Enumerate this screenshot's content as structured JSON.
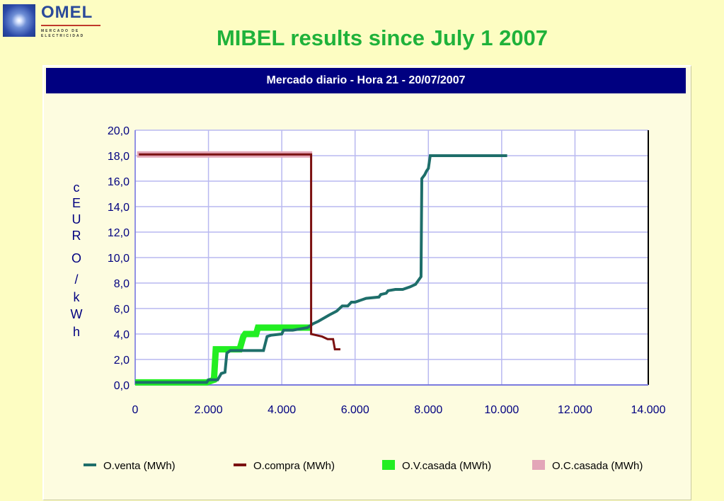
{
  "logo": {
    "word": "OMEL",
    "sub1": "MERCADO DE",
    "sub2": "ELECTRICIDAD"
  },
  "page_title": "MIBEL results since July 1 2007",
  "chart_data": {
    "type": "line",
    "title": "Mercado diario - Hora 21 - 20/07/2007",
    "xlabel": "",
    "ylabel": "cEURO/kWh",
    "ylabel_chars": [
      "c",
      "E",
      "U",
      "R",
      "O",
      "/",
      "k",
      "W",
      "h"
    ],
    "xlim": [
      0,
      14000
    ],
    "ylim": [
      0,
      20
    ],
    "x_ticks": [
      0,
      2000,
      4000,
      6000,
      8000,
      10000,
      12000,
      14000
    ],
    "x_tick_labels": [
      "0",
      "2.000",
      "4.000",
      "6.000",
      "8.000",
      "10.000",
      "12.000",
      "14.000"
    ],
    "y_ticks": [
      0,
      2,
      4,
      6,
      8,
      10,
      12,
      14,
      16,
      18,
      20
    ],
    "y_tick_labels": [
      "0,0",
      "2,0",
      "4,0",
      "6,0",
      "8,0",
      "10,0",
      "12,0",
      "14,0",
      "16,0",
      "18,0",
      "20,0"
    ],
    "grid": true,
    "legend_position": "bottom",
    "series": [
      {
        "name": "O.venta (MWh)",
        "color": "#1e6e6a",
        "points": [
          [
            0,
            0.2
          ],
          [
            1950,
            0.2
          ],
          [
            2000,
            0.4
          ],
          [
            2250,
            0.4
          ],
          [
            2350,
            0.9
          ],
          [
            2450,
            1.0
          ],
          [
            2500,
            2.5
          ],
          [
            2600,
            2.7
          ],
          [
            3500,
            2.7
          ],
          [
            3600,
            3.8
          ],
          [
            3700,
            3.9
          ],
          [
            4000,
            4.0
          ],
          [
            4050,
            4.3
          ],
          [
            4300,
            4.3
          ],
          [
            4500,
            4.4
          ],
          [
            4700,
            4.5
          ],
          [
            4850,
            4.8
          ],
          [
            5000,
            5.0
          ],
          [
            5300,
            5.5
          ],
          [
            5500,
            5.8
          ],
          [
            5650,
            6.2
          ],
          [
            5800,
            6.2
          ],
          [
            5900,
            6.5
          ],
          [
            6000,
            6.5
          ],
          [
            6100,
            6.6
          ],
          [
            6300,
            6.8
          ],
          [
            6650,
            6.9
          ],
          [
            6700,
            7.1
          ],
          [
            6850,
            7.2
          ],
          [
            6900,
            7.4
          ],
          [
            7100,
            7.5
          ],
          [
            7150,
            7.5
          ],
          [
            7300,
            7.5
          ],
          [
            7500,
            7.7
          ],
          [
            7650,
            7.9
          ],
          [
            7750,
            8.3
          ],
          [
            7800,
            8.5
          ],
          [
            7820,
            16.2
          ],
          [
            7900,
            16.5
          ],
          [
            7950,
            16.8
          ],
          [
            8000,
            17.0
          ],
          [
            8050,
            18.0
          ],
          [
            10150,
            18.0
          ]
        ]
      },
      {
        "name": "O.compra (MWh)",
        "color": "#7b1010",
        "points": [
          [
            100,
            18.1
          ],
          [
            4800,
            18.1
          ],
          [
            4800,
            4.0
          ],
          [
            5100,
            3.8
          ],
          [
            5250,
            3.6
          ],
          [
            5400,
            3.6
          ],
          [
            5450,
            2.8
          ],
          [
            5600,
            2.8
          ]
        ]
      },
      {
        "name": "O.V.casada (MWh)",
        "color": "#22ee22",
        "points": [
          [
            0,
            0.2
          ],
          [
            1950,
            0.2
          ],
          [
            2150,
            0.4
          ],
          [
            2200,
            2.8
          ],
          [
            2350,
            2.8
          ],
          [
            2450,
            2.8
          ],
          [
            2850,
            2.8
          ],
          [
            2950,
            3.8
          ],
          [
            3000,
            4.0
          ],
          [
            3300,
            4.0
          ],
          [
            3350,
            4.5
          ],
          [
            4800,
            4.5
          ]
        ]
      },
      {
        "name": "O.C.casada (MWh)",
        "color": "#e3a6b8",
        "points": [
          [
            50,
            18.1
          ],
          [
            4830,
            18.1
          ]
        ]
      }
    ]
  }
}
